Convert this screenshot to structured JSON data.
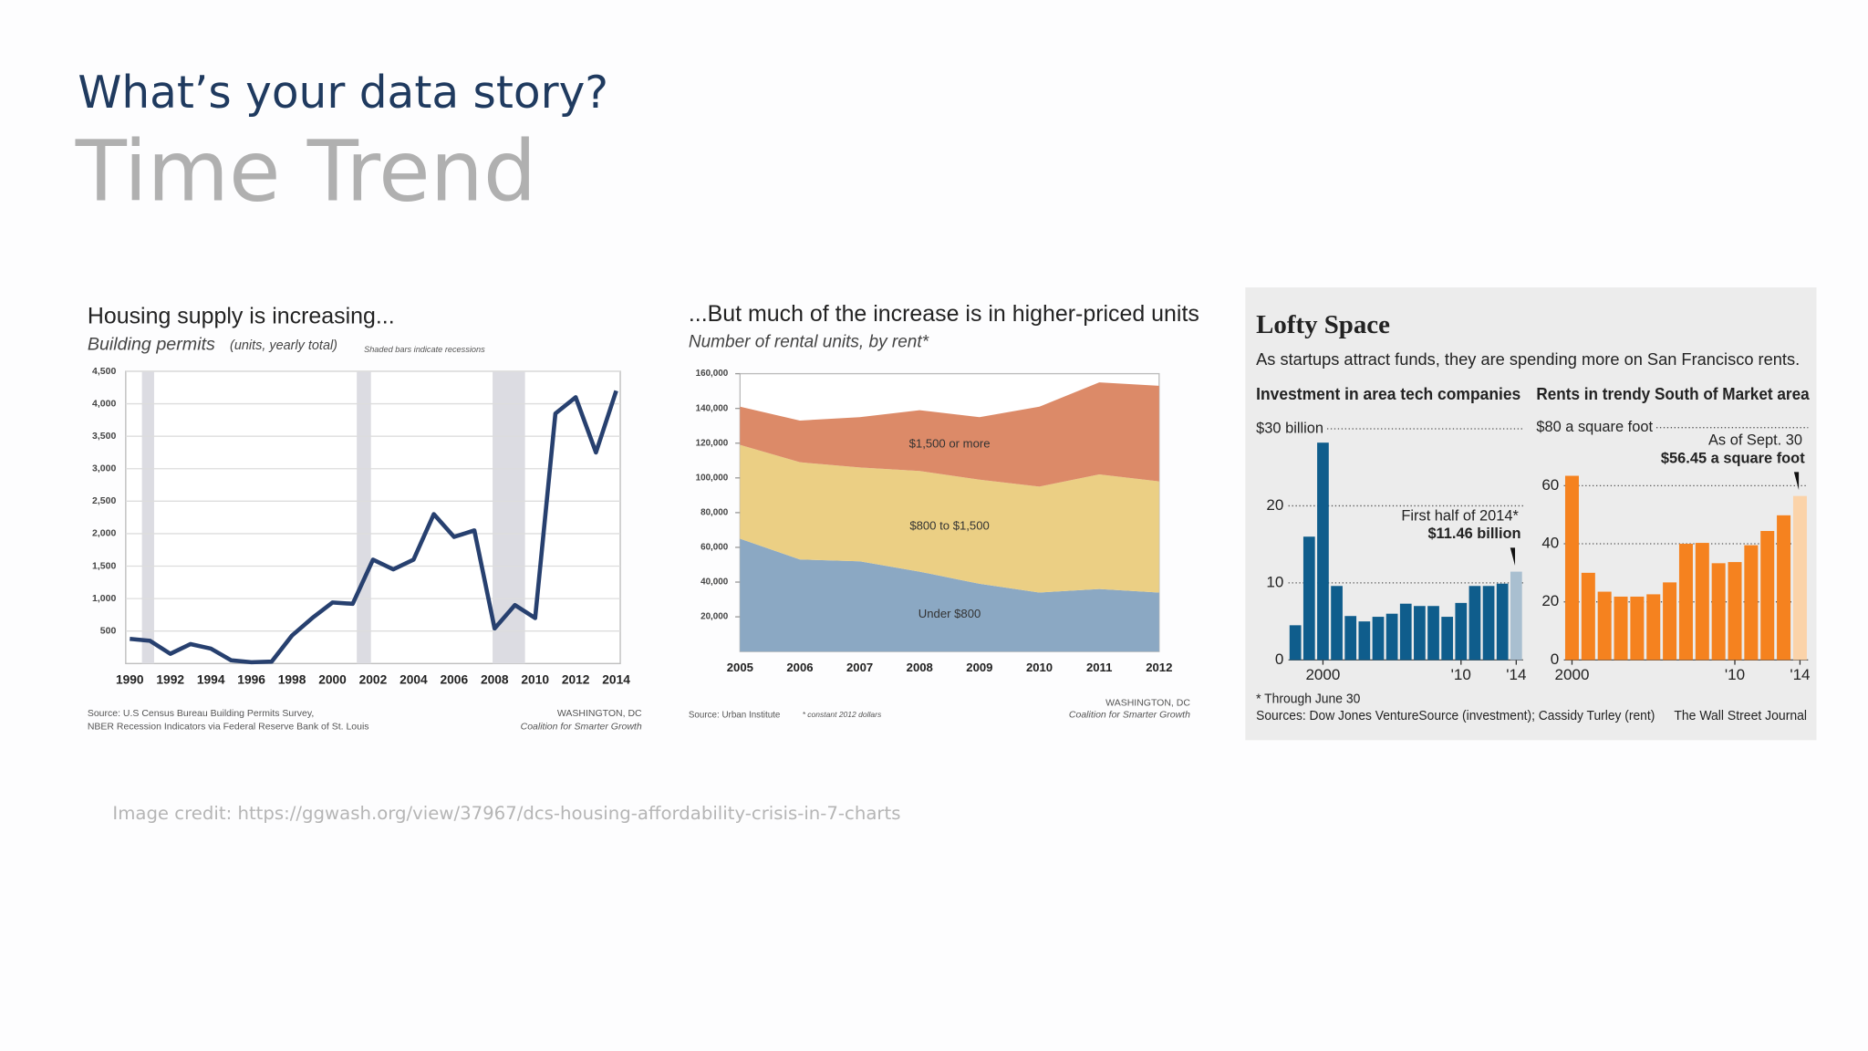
{
  "slide": {
    "heading": "What’s your data story?",
    "subheading": "Time Trend",
    "credit": "Image credit: https://ggwash.org/view/37967/dcs-housing-affordability-crisis-in-7-charts"
  },
  "wsj_panel": {
    "title": "Lofty Space",
    "subtitle": "As startups attract funds, they are spending more on San Francisco rents.",
    "footnote": "* Through June 30",
    "sources": "Sources: Dow Jones VentureSource (investment); Cassidy Turley (rent)",
    "publisher": "The Wall Street Journal"
  },
  "chart_data": [
    {
      "type": "line",
      "title": "Housing supply is increasing...",
      "subtitle": "Building permits",
      "units": "(units, yearly total)",
      "note": "Shaded bars indicate recessions",
      "source": [
        "Source: U.S Census Bureau Building Permits Survey,",
        "NBER Recession Indicators via Federal Reserve Bank of St. Louis"
      ],
      "credit": [
        "WASHINGTON, DC",
        "Coalition for Smarter Growth"
      ],
      "x": [
        1990,
        1991,
        1992,
        1993,
        1994,
        1995,
        1996,
        1997,
        1998,
        1999,
        2000,
        2001,
        2002,
        2003,
        2004,
        2005,
        2006,
        2007,
        2008,
        2009,
        2010,
        2011,
        2012,
        2013,
        2014
      ],
      "values": [
        380,
        350,
        150,
        300,
        230,
        50,
        20,
        30,
        430,
        700,
        940,
        920,
        1600,
        1450,
        1600,
        2300,
        1950,
        2050,
        540,
        900,
        700,
        3850,
        4100,
        3250,
        4200
      ],
      "color": "#27406f",
      "recessions": [
        [
          1990.6,
          1991.2
        ],
        [
          2001.2,
          2001.9
        ],
        [
          2007.9,
          2009.5
        ]
      ],
      "recession_color": "#dcdce2",
      "xlim": [
        1989.8,
        2014.2
      ],
      "xticks": [
        1990,
        1992,
        1994,
        1996,
        1998,
        2000,
        2002,
        2004,
        2006,
        2008,
        2010,
        2012,
        2014
      ],
      "ylim": [
        0,
        4500
      ],
      "yticks": [
        500,
        {
          "value": 1000,
          "label": "1,000"
        },
        {
          "value": 1500,
          "label": "1,500"
        },
        {
          "value": 2000,
          "label": "2,000"
        },
        {
          "value": 2500,
          "label": "2,500"
        },
        {
          "value": 3000,
          "label": "3,000"
        },
        {
          "value": 3500,
          "label": "3,500"
        },
        {
          "value": 4000,
          "label": "4,000"
        },
        {
          "value": 4500,
          "label": "4,500"
        }
      ],
      "grid": true
    },
    {
      "type": "area",
      "stacked": true,
      "title": "...But much of the increase is in higher-priced units",
      "subtitle": "Number of rental units, by rent*",
      "source": [
        "Source: Urban Institute",
        "* constant 2012 dollars"
      ],
      "credit": [
        "WASHINGTON, DC",
        "Coalition for Smarter Growth"
      ],
      "x": [
        2005,
        2006,
        2007,
        2008,
        2009,
        2010,
        2011,
        2012
      ],
      "series": [
        {
          "name": "Under $800",
          "color": "#8ba8c3",
          "values": [
            65000,
            53000,
            52000,
            46000,
            39000,
            34000,
            36000,
            34000
          ]
        },
        {
          "name": "$800 to $1,500",
          "color": "#ebcf84",
          "values": [
            54000,
            56000,
            54000,
            58000,
            60000,
            61000,
            66000,
            64000
          ]
        },
        {
          "name": "$1,500 or more",
          "color": "#dc8a68",
          "values": [
            22000,
            24000,
            29000,
            35000,
            36000,
            46000,
            53000,
            55000
          ]
        }
      ],
      "xlim": [
        2005,
        2012
      ],
      "xticks": [
        2005,
        2006,
        2007,
        2008,
        2009,
        2010,
        2011,
        2012
      ],
      "ylim": [
        0,
        160000
      ],
      "yticks": [
        {
          "value": 20000,
          "label": "20,000"
        },
        {
          "value": 40000,
          "label": "40,000"
        },
        {
          "value": 60000,
          "label": "60,000"
        },
        {
          "value": 80000,
          "label": "80,000"
        },
        {
          "value": 100000,
          "label": "100,000"
        },
        {
          "value": 120000,
          "label": "120,000"
        },
        {
          "value": 140000,
          "label": "140,000"
        },
        {
          "value": 160000,
          "label": "160,000"
        }
      ]
    },
    {
      "type": "bar",
      "title": "Investment in area tech companies",
      "x": [
        1998,
        1999,
        2000,
        2001,
        2002,
        2003,
        2004,
        2005,
        2006,
        2007,
        2008,
        2009,
        2010,
        2011,
        2012,
        2013,
        2014
      ],
      "values": [
        4.5,
        16,
        28.2,
        9.6,
        5.7,
        5,
        5.6,
        6,
        7.3,
        7,
        7,
        5.6,
        7.4,
        9.6,
        9.6,
        9.9,
        11.46
      ],
      "colors": [
        "#0f5d8c",
        "#0f5d8c",
        "#0f5d8c",
        "#0f5d8c",
        "#0f5d8c",
        "#0f5d8c",
        "#0f5d8c",
        "#0f5d8c",
        "#0f5d8c",
        "#0f5d8c",
        "#0f5d8c",
        "#0f5d8c",
        "#0f5d8c",
        "#0f5d8c",
        "#0f5d8c",
        "#0f5d8c",
        "#a9bfd0"
      ],
      "annotations": [
        "First half of 2014*",
        "$11.46 billion"
      ],
      "xlim": [
        1997.5,
        2014.5
      ],
      "xticks": [
        2000,
        {
          "value": 2010,
          "label": "'10"
        },
        {
          "value": 2014,
          "label": "'14"
        }
      ],
      "ylim": [
        0,
        30
      ],
      "yticks": [
        0,
        10,
        20,
        {
          "value": 30,
          "label": "$30 billion"
        }
      ]
    },
    {
      "type": "bar",
      "title": "Rents in trendy South of Market area",
      "x": [
        2000,
        2001,
        2002,
        2003,
        2004,
        2005,
        2006,
        2007,
        2008,
        2009,
        2010,
        2011,
        2012,
        2013,
        2014
      ],
      "values": [
        63.4,
        30,
        23.5,
        21.8,
        21.8,
        22.6,
        26.7,
        40,
        40.3,
        33.3,
        33.7,
        39.5,
        44.4,
        49.8,
        56.45
      ],
      "colors": [
        "#f5821f",
        "#f5821f",
        "#f5821f",
        "#f5821f",
        "#f5821f",
        "#f5821f",
        "#f5821f",
        "#f5821f",
        "#f5821f",
        "#f5821f",
        "#f5821f",
        "#f5821f",
        "#f5821f",
        "#f5821f",
        "#fbd3a9"
      ],
      "annotations": [
        "As of Sept. 30",
        "$56.45 a square foot"
      ],
      "xlim": [
        1999.5,
        2014.5
      ],
      "xticks": [
        2000,
        {
          "value": 2010,
          "label": "'10"
        },
        {
          "value": 2014,
          "label": "'14"
        }
      ],
      "ylim": [
        0,
        80
      ],
      "yticks": [
        0,
        20,
        40,
        60,
        {
          "value": 80,
          "label": "$80 a square foot"
        }
      ]
    }
  ]
}
